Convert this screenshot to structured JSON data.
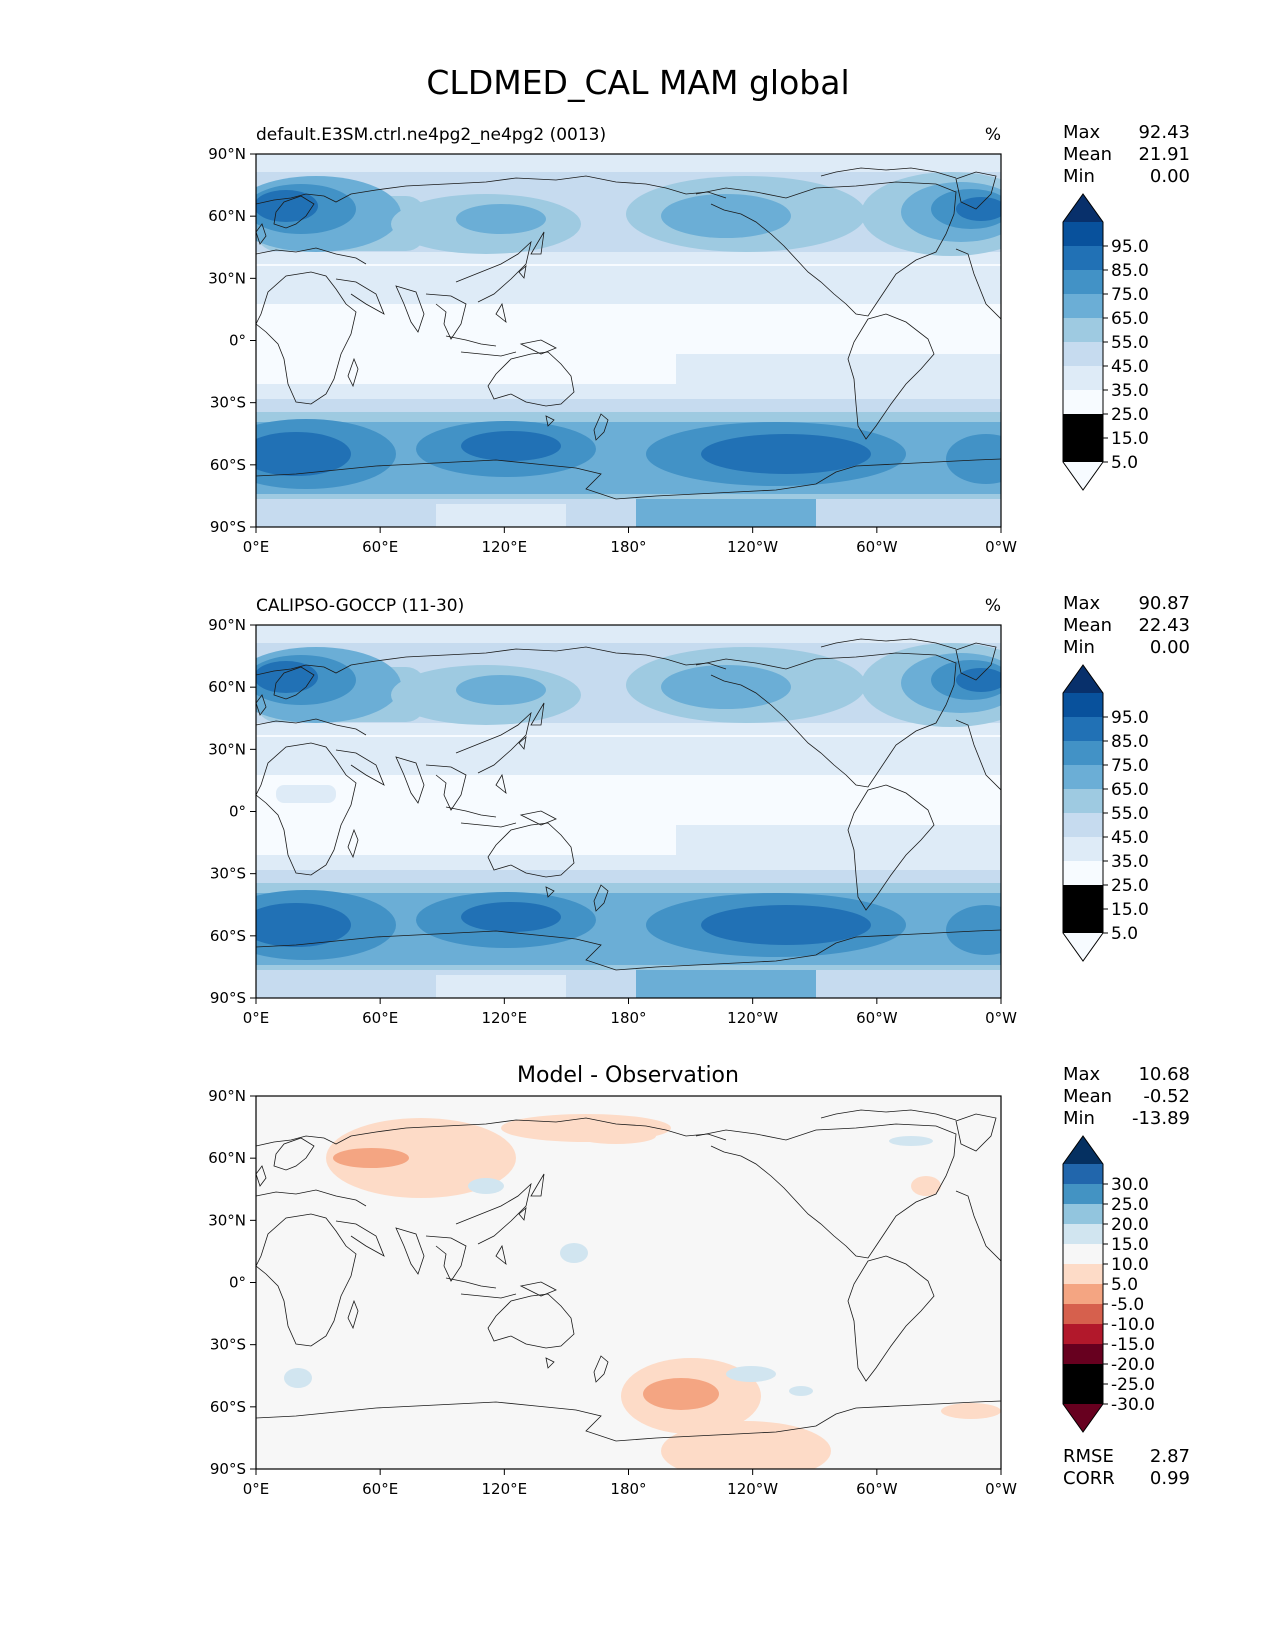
{
  "figure": {
    "title": "CLDMED_CAL MAM global"
  },
  "colors": {
    "blues": [
      "#f7fbff",
      "#deebf7",
      "#c6dbef",
      "#9ecae1",
      "#6baed6",
      "#4292c6",
      "#2171b5",
      "#08519c",
      "#08306b"
    ],
    "diverging": [
      "#67001f",
      "#b2182b",
      "#d6604d",
      "#f4a582",
      "#fddbc7",
      "#f7f7f7",
      "#d1e5f0",
      "#92c5de",
      "#4393c3",
      "#2166ac",
      "#053061"
    ]
  },
  "lat_ticks": [
    "90°N",
    "60°N",
    "30°N",
    "0°",
    "30°S",
    "60°S",
    "90°S"
  ],
  "lon_ticks": [
    "0°E",
    "60°E",
    "120°E",
    "180°",
    "120°W",
    "60°W",
    "0°W"
  ],
  "panels": [
    {
      "id": "model",
      "left_title": "default.E3SM.ctrl.ne4pg2_ne4pg2 (0013)",
      "center_title": "",
      "units": "%",
      "stats": [
        {
          "label": "Max",
          "value": "92.43"
        },
        {
          "label": "Mean",
          "value": "21.91"
        },
        {
          "label": "Min",
          "value": "0.00"
        }
      ],
      "colorbar_labels": [
        "95.0",
        "85.0",
        "75.0",
        "65.0",
        "55.0",
        "45.0",
        "35.0",
        "25.0",
        "15.0",
        "5.0"
      ],
      "metrics": []
    },
    {
      "id": "observation",
      "left_title": "CALIPSO-GOCCP (11-30)",
      "center_title": "",
      "units": "%",
      "stats": [
        {
          "label": "Max",
          "value": "90.87"
        },
        {
          "label": "Mean",
          "value": "22.43"
        },
        {
          "label": "Min",
          "value": "0.00"
        }
      ],
      "colorbar_labels": [
        "95.0",
        "85.0",
        "75.0",
        "65.0",
        "55.0",
        "45.0",
        "35.0",
        "25.0",
        "15.0",
        "5.0"
      ],
      "metrics": []
    },
    {
      "id": "difference",
      "left_title": "",
      "center_title": "Model - Observation",
      "units": "",
      "stats": [
        {
          "label": "Max",
          "value": "10.68"
        },
        {
          "label": "Mean",
          "value": "-0.52"
        },
        {
          "label": "Min",
          "value": "-13.89"
        }
      ],
      "colorbar_labels": [
        "30.0",
        "25.0",
        "20.0",
        "15.0",
        "10.0",
        "5.0",
        "-5.0",
        "-10.0",
        "-15.0",
        "-20.0",
        "-25.0",
        "-30.0"
      ],
      "metrics": [
        {
          "label": "RMSE",
          "value": "2.87"
        },
        {
          "label": "CORR",
          "value": "0.99"
        }
      ]
    }
  ]
}
